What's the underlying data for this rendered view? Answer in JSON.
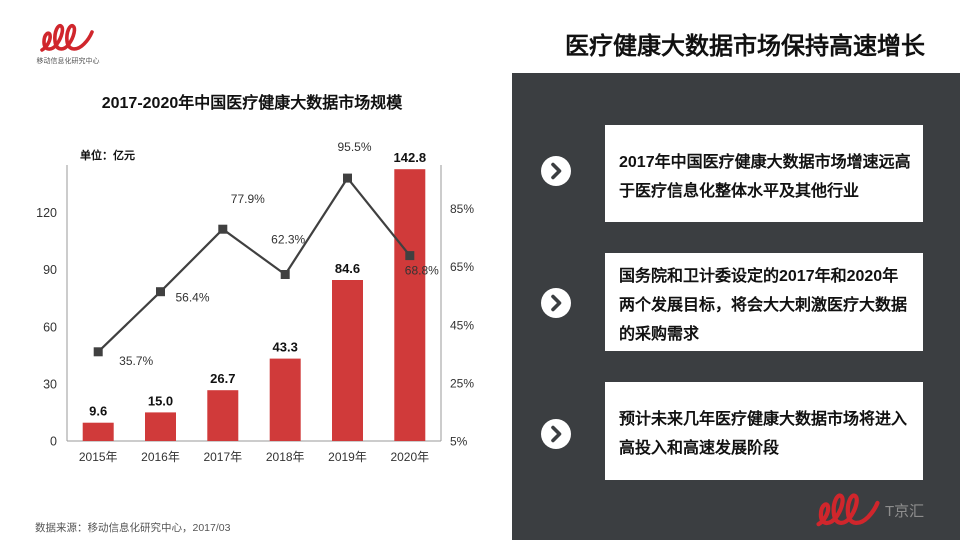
{
  "header": {
    "title": "医疗健康大数据市场保持高速增长"
  },
  "logo": {
    "caption": "移动信息化研究中心",
    "icon": "brand-logo-icon"
  },
  "watermark": {
    "text": "T京汇",
    "icon": "brand-logo-icon"
  },
  "colors": {
    "brand": "#d0262c",
    "bar": "#d03a3a",
    "line": "#404040",
    "panel": "#3b3e41",
    "box": "#ffffff"
  },
  "chart_data": {
    "type": "bar",
    "title": "2017-2020年中国医疗健康大数据市场规模",
    "ylabel": "单位：亿元",
    "categories": [
      "2015年",
      "2016年",
      "2017年",
      "2018年",
      "2019年",
      "2020年"
    ],
    "series": [
      {
        "type": "bar",
        "axis": "left",
        "values": [
          9.6,
          15.0,
          26.7,
          43.3,
          84.6,
          142.8
        ],
        "labels": [
          "9.6",
          "15.0",
          "26.7",
          "43.3",
          "84.6",
          "142.8"
        ]
      },
      {
        "type": "line",
        "axis": "right",
        "values": [
          35.7,
          56.4,
          77.9,
          62.3,
          95.5,
          68.8
        ],
        "labels": [
          "35.7%",
          "56.4%",
          "77.9%",
          "62.3%",
          "95.5%",
          "68.8%"
        ]
      }
    ],
    "y_ticks": [
      "0",
      "30",
      "60",
      "90",
      "120"
    ],
    "y2_ticks": [
      "5%",
      "25%",
      "45%",
      "65%",
      "85%"
    ],
    "ylim": [
      0,
      145
    ],
    "y2lim": [
      5,
      100
    ],
    "grid": false,
    "legend": "none"
  },
  "source": "数据来源：移动信息化研究中心，2017/03",
  "panel": {
    "bullet_icon": "chevron-right-icon",
    "items": [
      {
        "lines": [
          "2017年中国医疗健康大数据市场增速远高",
          "于医疗信息化整体水平及其他行业"
        ]
      },
      {
        "lines": [
          "国务院和卫计委设定的2017年和2020年",
          "两个发展目标，将会大大刺激医疗大数据",
          "的采购需求"
        ]
      },
      {
        "lines": [
          "预计未来几年医疗健康大数据市场将进入",
          "高投入和高速发展阶段"
        ]
      }
    ]
  }
}
